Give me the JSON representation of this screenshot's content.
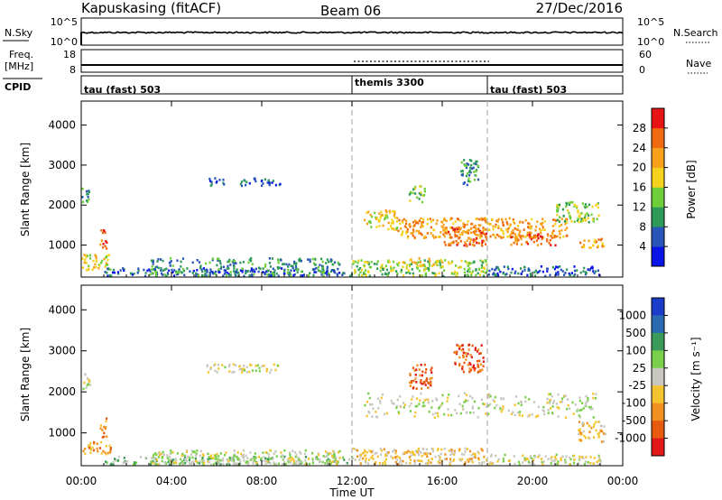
{
  "header": {
    "station": "Kapuskasing (fitACF)",
    "beam": "Beam 06",
    "date": "27/Dec/2016"
  },
  "nsky_panel": {
    "left_label": "N.Sky",
    "left_ticks": [
      "10^5",
      "10^0"
    ],
    "right_ticks": [
      "10^5",
      "10^0"
    ],
    "right_label": "N.Search"
  },
  "freq_panel": {
    "left_label_line1": "Freq.",
    "left_label_line2": "[MHz]",
    "left_ticks": [
      "18",
      "8"
    ],
    "right_ticks": [
      "60",
      "0"
    ],
    "right_label": "Nave"
  },
  "cpid_panel": {
    "label": "CPID",
    "segments": [
      {
        "label": "tau (fast) 503",
        "start_hour": 0,
        "end_hour": 12
      },
      {
        "label": "themis 3300",
        "start_hour": 12,
        "end_hour": 18
      },
      {
        "label": "tau (fast) 503",
        "start_hour": 18,
        "end_hour": 24
      }
    ]
  },
  "chart_data": [
    {
      "type": "heatmap",
      "name": "power",
      "ylabel": "Slant Range [km]",
      "y_ticks": [
        "1000",
        "2000",
        "3000",
        "4000"
      ],
      "ylim": [
        200,
        4600
      ],
      "xlim": [
        0,
        24
      ],
      "colorbar": {
        "label": "Power [dB]",
        "ticks": [
          "4",
          "8",
          "12",
          "16",
          "20",
          "24",
          "28"
        ],
        "colors": [
          "#0a14e6",
          "#2a55b8",
          "#2e9a5a",
          "#6fcf3a",
          "#f4d21e",
          "#f7a01a",
          "#f06a10",
          "#e61414"
        ]
      },
      "regions": [
        {
          "hour_start": 0.0,
          "hour_end": 0.4,
          "range_start": 2100,
          "range_end": 2500,
          "level": 2
        },
        {
          "hour_start": 0.0,
          "hour_end": 1.3,
          "range_start": 400,
          "range_end": 800,
          "level": 4
        },
        {
          "hour_start": 0.8,
          "hour_end": 1.1,
          "range_start": 800,
          "range_end": 1400,
          "level": 6
        },
        {
          "hour_start": 1.0,
          "hour_end": 12.0,
          "range_start": 250,
          "range_end": 450,
          "level": 1
        },
        {
          "hour_start": 3.0,
          "hour_end": 11.5,
          "range_start": 250,
          "range_end": 700,
          "level": 2
        },
        {
          "hour_start": 7.0,
          "hour_end": 8.8,
          "range_start": 2500,
          "range_end": 2700,
          "level": 1
        },
        {
          "hour_start": 5.5,
          "hour_end": 6.3,
          "range_start": 2500,
          "range_end": 2700,
          "level": 1
        },
        {
          "hour_start": 12.0,
          "hour_end": 18.0,
          "range_start": 250,
          "range_end": 650,
          "level": 3
        },
        {
          "hour_start": 14.0,
          "hour_end": 16.0,
          "range_start": 500,
          "range_end": 700,
          "level": 4
        },
        {
          "hour_start": 12.5,
          "hour_end": 14.0,
          "range_start": 1400,
          "range_end": 1900,
          "level": 4
        },
        {
          "hour_start": 14.0,
          "hour_end": 18.0,
          "range_start": 1200,
          "range_end": 1700,
          "level": 5
        },
        {
          "hour_start": 16.0,
          "hour_end": 18.0,
          "range_start": 1000,
          "range_end": 1500,
          "level": 6
        },
        {
          "hour_start": 18.0,
          "hour_end": 21.5,
          "range_start": 1200,
          "range_end": 1700,
          "level": 5
        },
        {
          "hour_start": 19.0,
          "hour_end": 21.0,
          "range_start": 1000,
          "range_end": 1300,
          "level": 6
        },
        {
          "hour_start": 21.0,
          "hour_end": 23.0,
          "range_start": 1600,
          "range_end": 2100,
          "level": 3
        },
        {
          "hour_start": 22.0,
          "hour_end": 23.2,
          "range_start": 950,
          "range_end": 1200,
          "level": 5
        },
        {
          "hour_start": 14.5,
          "hour_end": 15.2,
          "range_start": 2100,
          "range_end": 2500,
          "level": 3
        },
        {
          "hour_start": 16.8,
          "hour_end": 17.6,
          "range_start": 2500,
          "range_end": 3200,
          "level": 2
        },
        {
          "hour_start": 18.0,
          "hour_end": 23.0,
          "range_start": 250,
          "range_end": 500,
          "level": 1
        }
      ]
    },
    {
      "type": "heatmap",
      "name": "velocity",
      "ylabel": "Slant Range [km]",
      "y_ticks": [
        "1000",
        "2000",
        "3000",
        "4000"
      ],
      "ylim": [
        200,
        4600
      ],
      "xlim": [
        0,
        24
      ],
      "x_ticks": [
        "00:00",
        "04:00",
        "08:00",
        "12:00",
        "16:00",
        "20:00",
        "00:00"
      ],
      "xlabel": "Time UT",
      "colorbar": {
        "label": "Velocity [m s⁻¹]",
        "ticks": [
          "1000",
          "500",
          "100",
          "25",
          "-25",
          "-100",
          "-500",
          "-1000"
        ],
        "colors": [
          "#1a3cc8",
          "#2a6ab0",
          "#3a9a5a",
          "#7ad04a",
          "#c8c8c0",
          "#f4c430",
          "#f09020",
          "#e85a10",
          "#e01818"
        ]
      },
      "regions": [
        {
          "hour_start": 0.0,
          "hour_end": 0.4,
          "range_start": 2100,
          "range_end": 2500,
          "level": 4
        },
        {
          "hour_start": 0.0,
          "hour_end": 1.3,
          "range_start": 500,
          "range_end": 800,
          "level": 6
        },
        {
          "hour_start": 0.8,
          "hour_end": 1.1,
          "range_start": 900,
          "range_end": 1400,
          "level": 6
        },
        {
          "hour_start": 1.0,
          "hour_end": 12.0,
          "range_start": 250,
          "range_end": 450,
          "level": 3
        },
        {
          "hour_start": 3.0,
          "hour_end": 11.5,
          "range_start": 250,
          "range_end": 600,
          "level": 4
        },
        {
          "hour_start": 5.5,
          "hour_end": 8.8,
          "range_start": 2500,
          "range_end": 2700,
          "level": 4
        },
        {
          "hour_start": 12.0,
          "hour_end": 18.0,
          "range_start": 250,
          "range_end": 650,
          "level": 5
        },
        {
          "hour_start": 12.5,
          "hour_end": 23.0,
          "range_start": 1400,
          "range_end": 2000,
          "level": 4
        },
        {
          "hour_start": 14.5,
          "hour_end": 15.5,
          "range_start": 2100,
          "range_end": 2700,
          "level": 7
        },
        {
          "hour_start": 16.5,
          "hour_end": 17.8,
          "range_start": 2500,
          "range_end": 3200,
          "level": 7
        },
        {
          "hour_start": 22.0,
          "hour_end": 23.2,
          "range_start": 800,
          "range_end": 1300,
          "level": 5
        },
        {
          "hour_start": 18.0,
          "hour_end": 23.0,
          "range_start": 250,
          "range_end": 500,
          "level": 4
        }
      ]
    }
  ]
}
